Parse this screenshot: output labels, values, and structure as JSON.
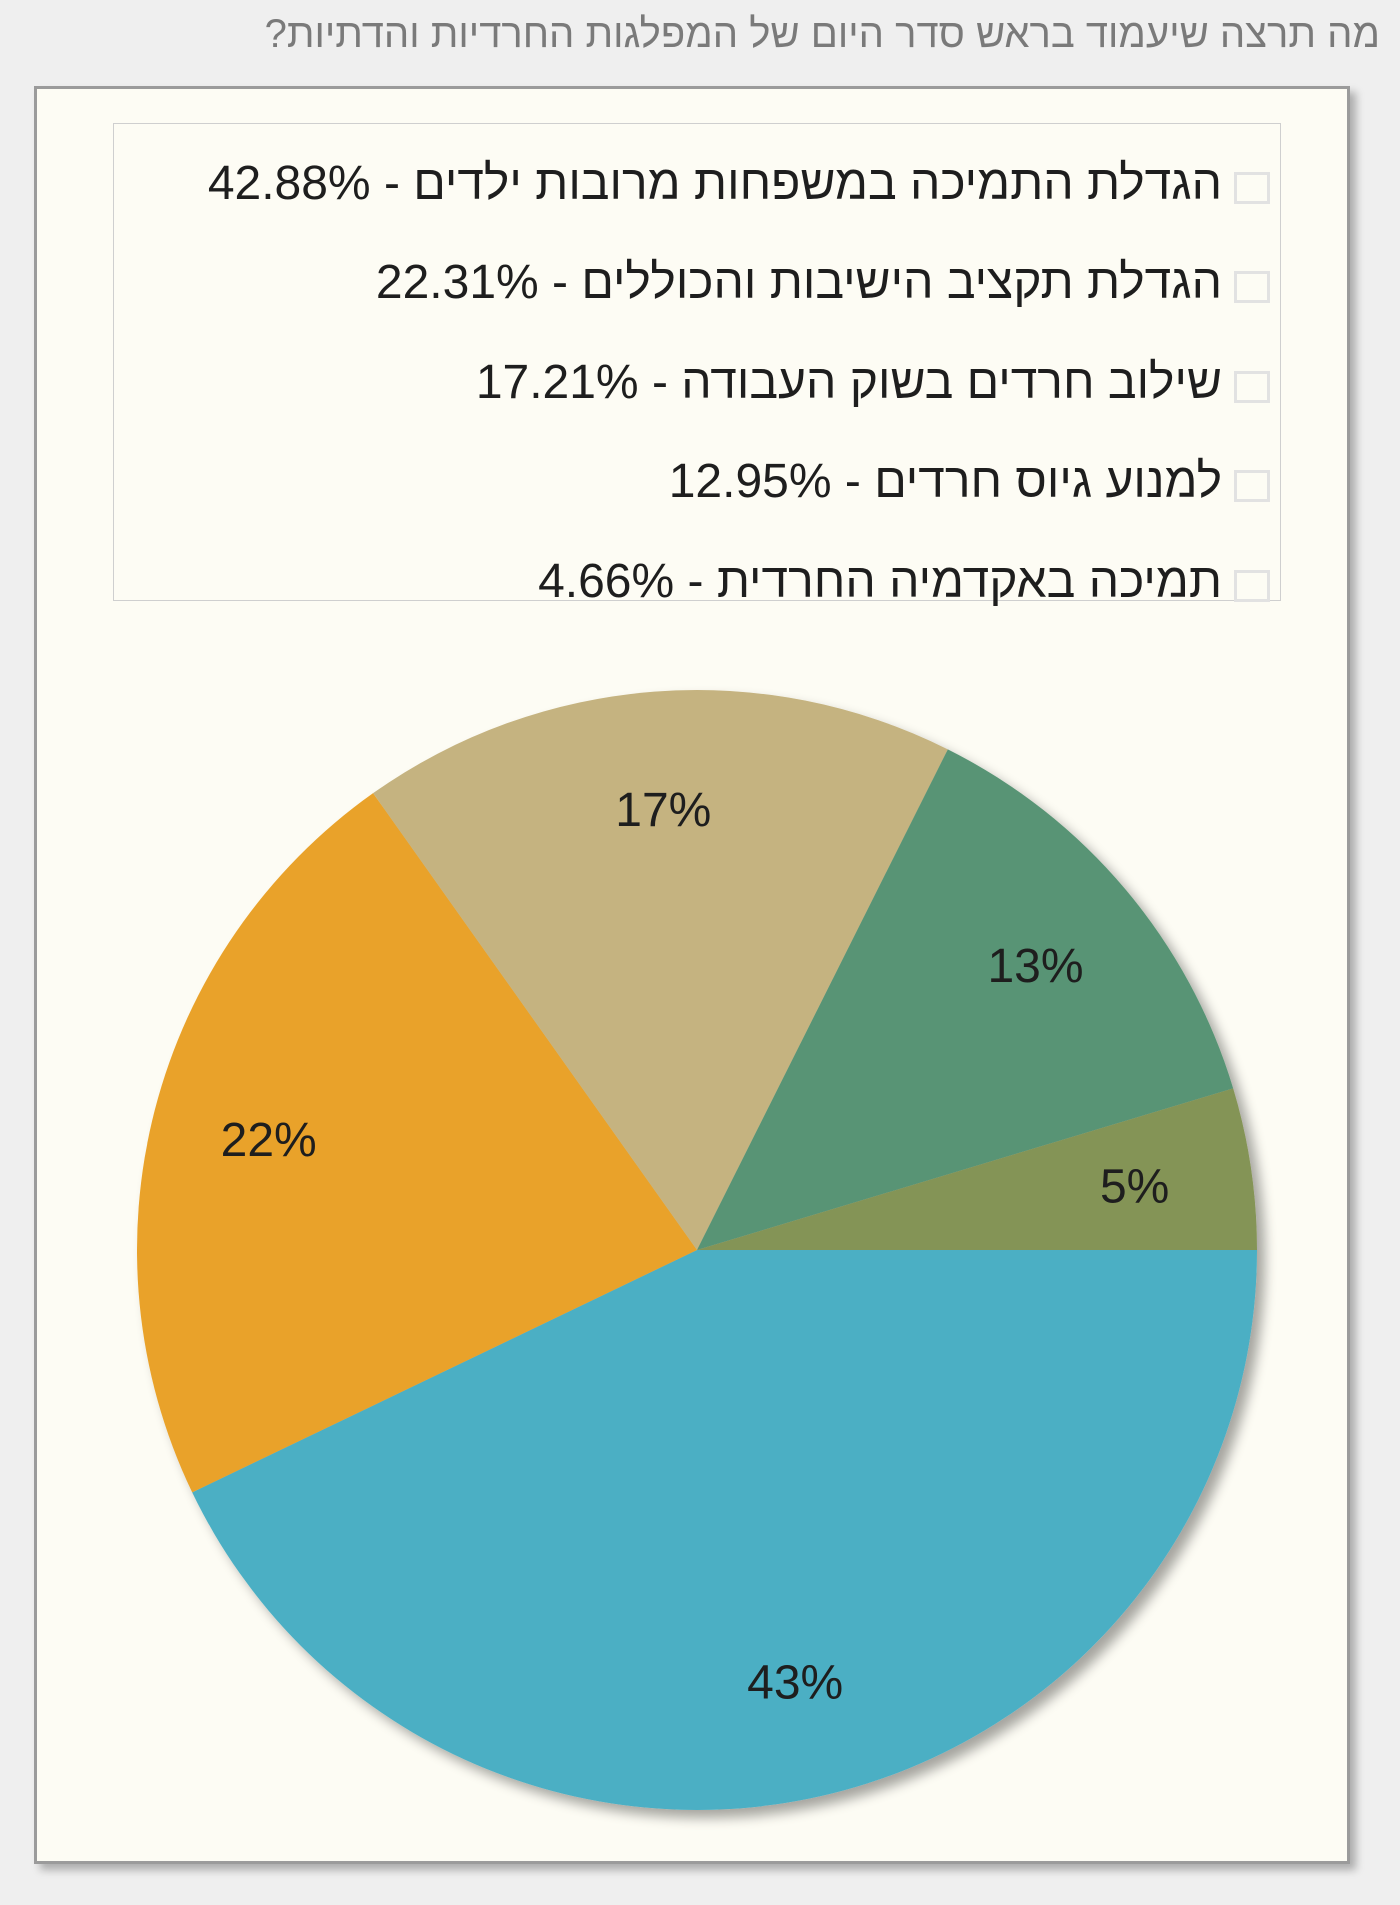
{
  "question": "מה תרצה שיעמוד בראש סדר היום של המפלגות החרדיות והדתיות?",
  "chart_data": {
    "type": "pie",
    "title": "",
    "legend_position": "top",
    "slices": [
      {
        "label": "הגדלת התמיכה במשפחות מרובות ילדים",
        "value": 42.88,
        "legend_text": "הגדלת התמיכה במשפחות מרובות ילדים - 42.88%",
        "data_label": "43%",
        "color": "#4bafc4"
      },
      {
        "label": "הגדלת תקציב הישיבות והכוללים",
        "value": 22.31,
        "legend_text": "הגדלת תקציב הישיבות והכוללים - 22.31%",
        "data_label": "22%",
        "color": "#e9a22a"
      },
      {
        "label": "שילוב חרדים בשוק העבודה",
        "value": 17.21,
        "legend_text": "שילוב חרדים בשוק העבודה - 17.21%",
        "data_label": "17%",
        "color": "#c5b380"
      },
      {
        "label": "למנוע גיוס חרדים",
        "value": 12.95,
        "legend_text": "למנוע גיוס חרדים - 12.95%",
        "data_label": "13%",
        "color": "#589474"
      },
      {
        "label": "תמיכה באקדמיה החרדית",
        "value": 4.66,
        "legend_text": "תמיכה באקדמיה החרדית - 4.66%",
        "data_label": "5%",
        "color": "#849457"
      }
    ]
  }
}
